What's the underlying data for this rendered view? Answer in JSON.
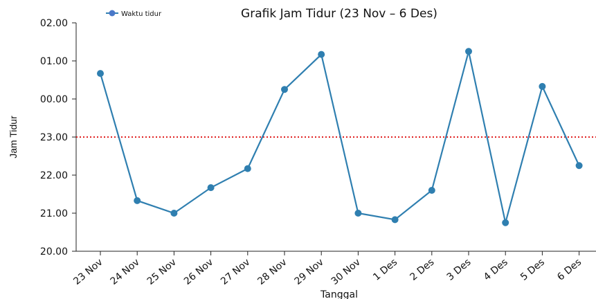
{
  "chart_data": {
    "type": "line",
    "title": "Grafik Jam Tidur (23 Nov – 6 Des)",
    "xlabel": "Tanggal",
    "ylabel": "Jam Tidur",
    "categories": [
      "23 Nov",
      "24 Nov",
      "25 Nov",
      "26 Nov",
      "27 Nov",
      "28 Nov",
      "29 Nov",
      "30 Nov",
      "1 Des",
      "2 Des",
      "3 Des",
      "4 Des",
      "5 Des",
      "6 Des"
    ],
    "y_ticks": [
      "20.00",
      "21.00",
      "22.00",
      "23.00",
      "00.00",
      "01.00",
      "02.00"
    ],
    "ylim": [
      20,
      26
    ],
    "series": [
      {
        "name": "Waktu tidur",
        "color": "#2f7fb0",
        "values": [
          24.67,
          21.33,
          21.0,
          21.67,
          22.17,
          24.25,
          25.17,
          21.0,
          20.83,
          21.6,
          25.25,
          20.75,
          24.33,
          22.25
        ]
      }
    ],
    "reference_line": {
      "value": 23.0,
      "color": "#e02020",
      "style": "dotted"
    },
    "legend_position": "top-left",
    "grid": false
  }
}
